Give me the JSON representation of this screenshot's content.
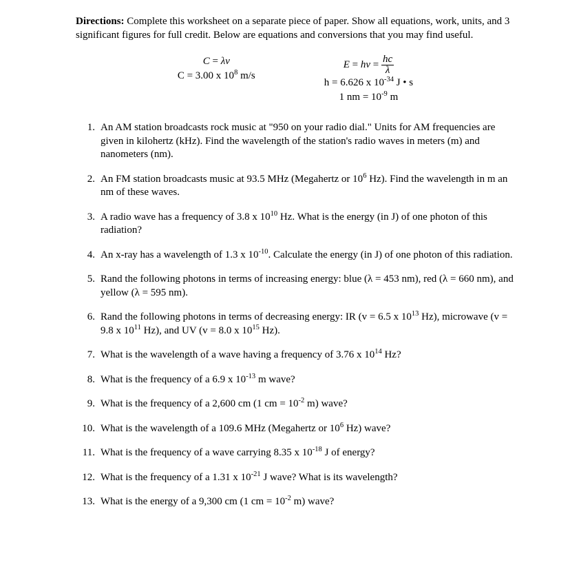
{
  "directions_label": "Directions:",
  "directions_text": " Complete this worksheet on a separate piece of paper. Show all equations, work, units, and 3 significant figures for full credit. Below are equations and conversions that you may find useful.",
  "eq_left_1_html": "<span class='italic'>C</span> = <span class='italic'>λv</span>",
  "eq_left_2_html": "C = 3.00 x 10<sup>8</sup> m/s",
  "eq_right_1_html": "<span class='italic'>E</span> = <span class='italic'>hv</span> = <span class='frac'><span class='num italic'>hc</span><span class='den italic'>λ</span></span>",
  "eq_right_2_html": "h = 6.626 x 10<sup>-34</sup> J • s",
  "eq_right_3_html": "1 nm = 10<sup>-9</sup> m",
  "questions": [
    "An AM station broadcasts rock music at \"950 on your radio dial.\" Units for AM frequencies are given in kilohertz (kHz). Find the wavelength of the station's radio waves in meters (m) and nanometers (nm).",
    "An FM station broadcasts music at 93.5 MHz (Megahertz or 10<sup>6</sup> Hz). Find the wavelength in m an nm of these waves.",
    "A radio wave has a frequency of 3.8 x 10<sup>10</sup> Hz. What is the energy (in J) of one photon of this radiation?",
    "An x-ray has a wavelength of 1.3 x 10<sup>-10</sup>. Calculate the energy (in J) of one photon of this radiation.",
    "Rand the following photons in terms of increasing energy: blue (λ = 453 nm), red (λ = 660 nm), and yellow (λ = 595 nm).",
    "Rand the following photons in terms of decreasing energy: IR (v = 6.5 x 10<sup>13</sup> Hz), microwave (v = 9.8 x 10<sup>11</sup> Hz), and UV (v = 8.0 x 10<sup>15</sup> Hz).",
    "What is the wavelength of a wave having a frequency of 3.76 x 10<sup>14</sup> Hz?",
    "What is the frequency of a 6.9 x 10<sup>-13</sup> m wave?",
    "What is the frequency of a 2,600 cm (1 cm = 10<sup>-2</sup> m) wave?",
    "What is the wavelength of a 109.6 MHz (Megahertz or 10<sup>6</sup> Hz) wave?",
    "What is the frequency of a wave carrying 8.35 x 10<sup>-18</sup> J of energy?",
    "What is the frequency of a 1.31 x 10<sup>-21</sup> J wave? What is its wavelength?",
    "What is the energy of a 9,300 cm (1 cm = 10<sup>-2</sup> m) wave?"
  ]
}
